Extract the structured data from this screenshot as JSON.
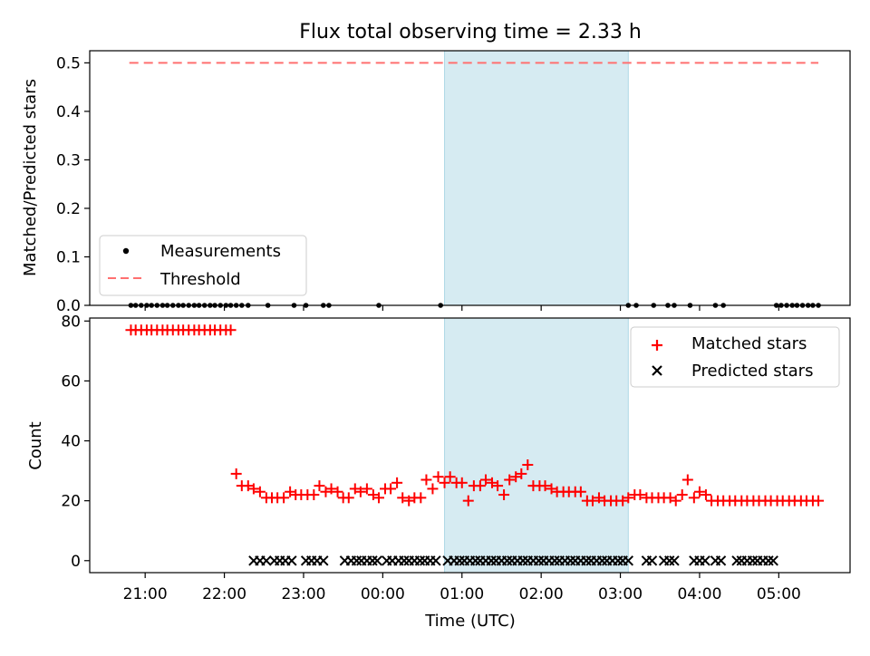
{
  "chart_data": [
    {
      "type": "scatter",
      "panel": "top",
      "title": "Flux total observing time = 2.33 h",
      "xlabel": "",
      "ylabel": "Matched/Predicted stars",
      "xlim_hours": [
        20.3,
        29.9
      ],
      "ylim": [
        0,
        0.525
      ],
      "yticks": [
        0.0,
        0.1,
        0.2,
        0.3,
        0.4,
        0.5
      ],
      "ytick_labels": [
        "0.0",
        "0.1",
        "0.2",
        "0.3",
        "0.4",
        "0.5"
      ],
      "legend_position": "lower-left",
      "legend": [
        {
          "label": "Measurements",
          "marker": "dot",
          "color": "#000000"
        },
        {
          "label": "Threshold",
          "marker": "dashed-line",
          "color": "#ff7070"
        }
      ],
      "threshold": {
        "value": 0.5,
        "x_range_hours": [
          20.8,
          29.5
        ],
        "color": "#ff7070"
      },
      "shaded_interval_hours": [
        0.78,
        3.1
      ],
      "shade_color": "#add8e6",
      "measurements": {
        "name": "Measurements",
        "x_hours": [
          20.82,
          20.88,
          20.95,
          21.02,
          21.08,
          21.15,
          21.22,
          21.28,
          21.35,
          21.42,
          21.48,
          21.55,
          21.62,
          21.68,
          21.75,
          21.82,
          21.88,
          21.95,
          22.02,
          22.08,
          22.15,
          22.22,
          22.3,
          22.55,
          22.88,
          23.03,
          23.25,
          23.32,
          23.95,
          24.73,
          27.1,
          27.2,
          27.42,
          27.6,
          27.68,
          27.88,
          28.2,
          28.3,
          28.97,
          29.03,
          29.1,
          29.17,
          29.23,
          29.3,
          29.37,
          29.43,
          29.5
        ],
        "y": [
          0,
          0,
          0,
          0,
          0,
          0,
          0,
          0,
          0,
          0,
          0,
          0,
          0,
          0,
          0,
          0,
          0,
          0,
          0,
          0,
          0,
          0,
          0,
          0,
          0,
          0,
          0,
          0,
          0,
          0,
          0,
          0,
          0,
          0,
          0,
          0,
          0,
          0,
          0,
          0,
          0,
          0,
          0,
          0,
          0,
          0,
          0
        ]
      }
    },
    {
      "type": "scatter",
      "panel": "bottom",
      "title": "",
      "xlabel": "Time (UTC)",
      "ylabel": "Count",
      "xlim_hours": [
        20.3,
        29.9
      ],
      "xticks_hours": [
        21,
        22,
        23,
        24,
        25,
        26,
        27,
        28,
        29
      ],
      "xtick_labels": [
        "21:00",
        "22:00",
        "23:00",
        "00:00",
        "01:00",
        "02:00",
        "03:00",
        "04:00",
        "05:00"
      ],
      "ylim": [
        -4,
        81
      ],
      "yticks": [
        0,
        20,
        40,
        60,
        80
      ],
      "ytick_labels": [
        "0",
        "20",
        "40",
        "60",
        "80"
      ],
      "legend_position": "upper-right",
      "legend": [
        {
          "label": "Matched stars",
          "marker": "plus",
          "color": "#ff0000"
        },
        {
          "label": "Predicted stars",
          "marker": "x",
          "color": "#000000"
        }
      ],
      "shaded_interval_hours": [
        0.78,
        3.1
      ],
      "shade_color": "#add8e6",
      "series": [
        {
          "name": "Matched stars",
          "marker": "plus",
          "color": "#ff0000",
          "x_hours": [
            20.82,
            20.88,
            20.95,
            21.02,
            21.08,
            21.15,
            21.22,
            21.28,
            21.35,
            21.42,
            21.48,
            21.55,
            21.62,
            21.68,
            21.75,
            21.82,
            21.88,
            21.95,
            22.02,
            22.08,
            22.15,
            22.22,
            22.3,
            22.37,
            22.45,
            22.53,
            22.6,
            22.67,
            22.75,
            22.83,
            22.9,
            22.97,
            23.05,
            23.13,
            23.2,
            23.28,
            23.35,
            23.43,
            23.5,
            23.57,
            23.65,
            23.72,
            23.8,
            23.88,
            23.95,
            24.03,
            24.1,
            24.18,
            24.25,
            24.33,
            24.4,
            24.48,
            24.55,
            24.63,
            24.7,
            24.78,
            24.85,
            24.93,
            25.0,
            25.08,
            25.15,
            25.23,
            25.3,
            25.38,
            25.45,
            25.53,
            25.6,
            25.68,
            25.75,
            25.83,
            25.9,
            25.98,
            26.05,
            26.13,
            26.2,
            26.28,
            26.35,
            26.43,
            26.5,
            26.58,
            26.65,
            26.73,
            26.8,
            26.88,
            26.95,
            27.03,
            27.1,
            27.18,
            27.25,
            27.33,
            27.4,
            27.48,
            27.55,
            27.63,
            27.7,
            27.78,
            27.85,
            27.93,
            28.0,
            28.08,
            28.15,
            28.23,
            28.3,
            28.38,
            28.45,
            28.53,
            28.6,
            28.68,
            28.75,
            28.83,
            28.9,
            28.98,
            29.05,
            29.13,
            29.2,
            29.28,
            29.35,
            29.43,
            29.5
          ],
          "y": [
            77,
            77,
            77,
            77,
            77,
            77,
            77,
            77,
            77,
            77,
            77,
            77,
            77,
            77,
            77,
            77,
            77,
            77,
            77,
            77,
            29,
            25,
            25,
            24,
            23,
            21,
            21,
            21,
            21,
            23,
            22,
            22,
            22,
            22,
            25,
            23,
            24,
            23,
            21,
            21,
            24,
            23,
            24,
            22,
            21,
            24,
            24,
            26,
            21,
            20,
            21,
            21,
            27,
            24,
            28,
            26,
            28,
            26,
            26,
            20,
            25,
            25,
            27,
            26,
            25,
            22,
            27,
            28,
            29,
            32,
            25,
            25,
            25,
            24,
            23,
            23,
            23,
            23,
            23,
            20,
            20,
            21,
            20,
            20,
            20,
            20,
            21,
            22,
            22,
            21,
            21,
            21,
            21,
            21,
            20,
            22,
            27,
            21,
            23,
            22,
            20,
            20,
            20,
            20,
            20,
            20,
            20,
            20,
            20,
            20,
            20,
            20,
            20,
            20,
            20,
            20,
            20,
            20,
            20
          ]
        },
        {
          "name": "Predicted stars",
          "marker": "x",
          "color": "#000000",
          "x_hours": [
            22.37,
            22.45,
            22.53,
            22.63,
            22.7,
            22.77,
            22.85,
            23.03,
            23.1,
            23.17,
            23.25,
            23.52,
            23.6,
            23.67,
            23.73,
            23.8,
            23.87,
            23.93,
            24.05,
            24.12,
            24.2,
            24.27,
            24.33,
            24.4,
            24.47,
            24.53,
            24.6,
            24.67,
            24.82,
            24.9,
            24.97,
            25.03,
            25.1,
            25.17,
            25.23,
            25.3,
            25.37,
            25.43,
            25.5,
            25.57,
            25.63,
            25.7,
            25.77,
            25.83,
            25.9,
            25.97,
            26.03,
            26.1,
            26.17,
            26.23,
            26.3,
            26.37,
            26.43,
            26.5,
            26.57,
            26.63,
            26.7,
            26.77,
            26.83,
            26.9,
            26.97,
            27.03,
            27.1,
            27.33,
            27.4,
            27.55,
            27.62,
            27.68,
            27.93,
            28.0,
            28.07,
            28.2,
            28.27,
            28.47,
            28.53,
            28.6,
            28.67,
            28.73,
            28.8,
            28.87,
            28.93
          ],
          "y": [
            0,
            0,
            0,
            0,
            0,
            0,
            0,
            0,
            0,
            0,
            0,
            0,
            0,
            0,
            0,
            0,
            0,
            0,
            0,
            0,
            0,
            0,
            0,
            0,
            0,
            0,
            0,
            0,
            0,
            0,
            0,
            0,
            0,
            0,
            0,
            0,
            0,
            0,
            0,
            0,
            0,
            0,
            0,
            0,
            0,
            0,
            0,
            0,
            0,
            0,
            0,
            0,
            0,
            0,
            0,
            0,
            0,
            0,
            0,
            0,
            0,
            0,
            0,
            0,
            0,
            0,
            0,
            0,
            0,
            0,
            0,
            0,
            0,
            0,
            0,
            0,
            0,
            0,
            0,
            0,
            0
          ]
        }
      ]
    }
  ]
}
